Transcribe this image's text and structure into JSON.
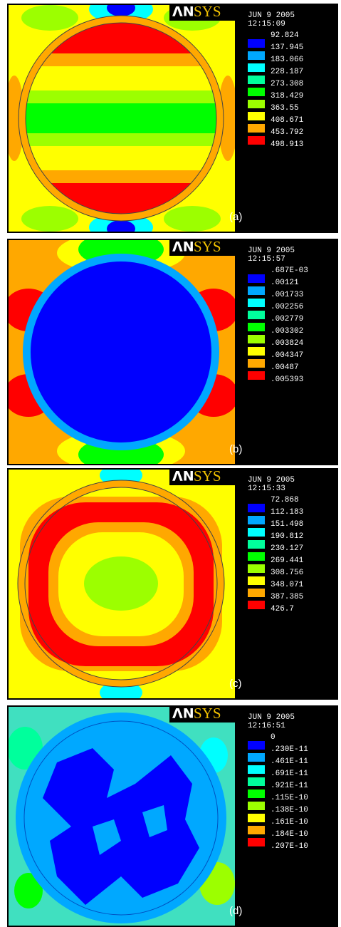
{
  "panels": [
    {
      "logo_left": "ΛN",
      "logo_right": "SYS",
      "date": "JUN 9 2005",
      "time": "12:15:09",
      "legend": [
        "92.824",
        "137.945",
        "183.066",
        "228.187",
        "273.308",
        "318.429",
        "363.55",
        "408.671",
        "453.792",
        "498.913"
      ],
      "caption": "(a)"
    },
    {
      "logo_left": "ΛN",
      "logo_right": "SYS",
      "date": "JUN 9 2005",
      "time": "12:15:57",
      "legend": [
        ".687E-03",
        ".00121",
        ".001733",
        ".002256",
        ".002779",
        ".003302",
        ".003824",
        ".004347",
        ".00487",
        ".005393"
      ],
      "caption": "(b)"
    },
    {
      "logo_left": "ΛN",
      "logo_right": "SYS",
      "date": "JUN 9 2005",
      "time": "12:15:33",
      "legend": [
        "72.868",
        "112.183",
        "151.498",
        "190.812",
        "230.127",
        "269.441",
        "308.756",
        "348.071",
        "387.385",
        "426.7"
      ],
      "caption": "(c)"
    },
    {
      "logo_left": "ΛN",
      "logo_right": "SYS",
      "date": "JUN 9 2005",
      "time": "12:16:51",
      "legend": [
        "0",
        ".230E-11",
        ".461E-11",
        ".691E-11",
        ".921E-11",
        ".115E-10",
        ".138E-10",
        ".161E-10",
        ".184E-10",
        ".207E-10"
      ],
      "caption": "(d)"
    }
  ]
}
